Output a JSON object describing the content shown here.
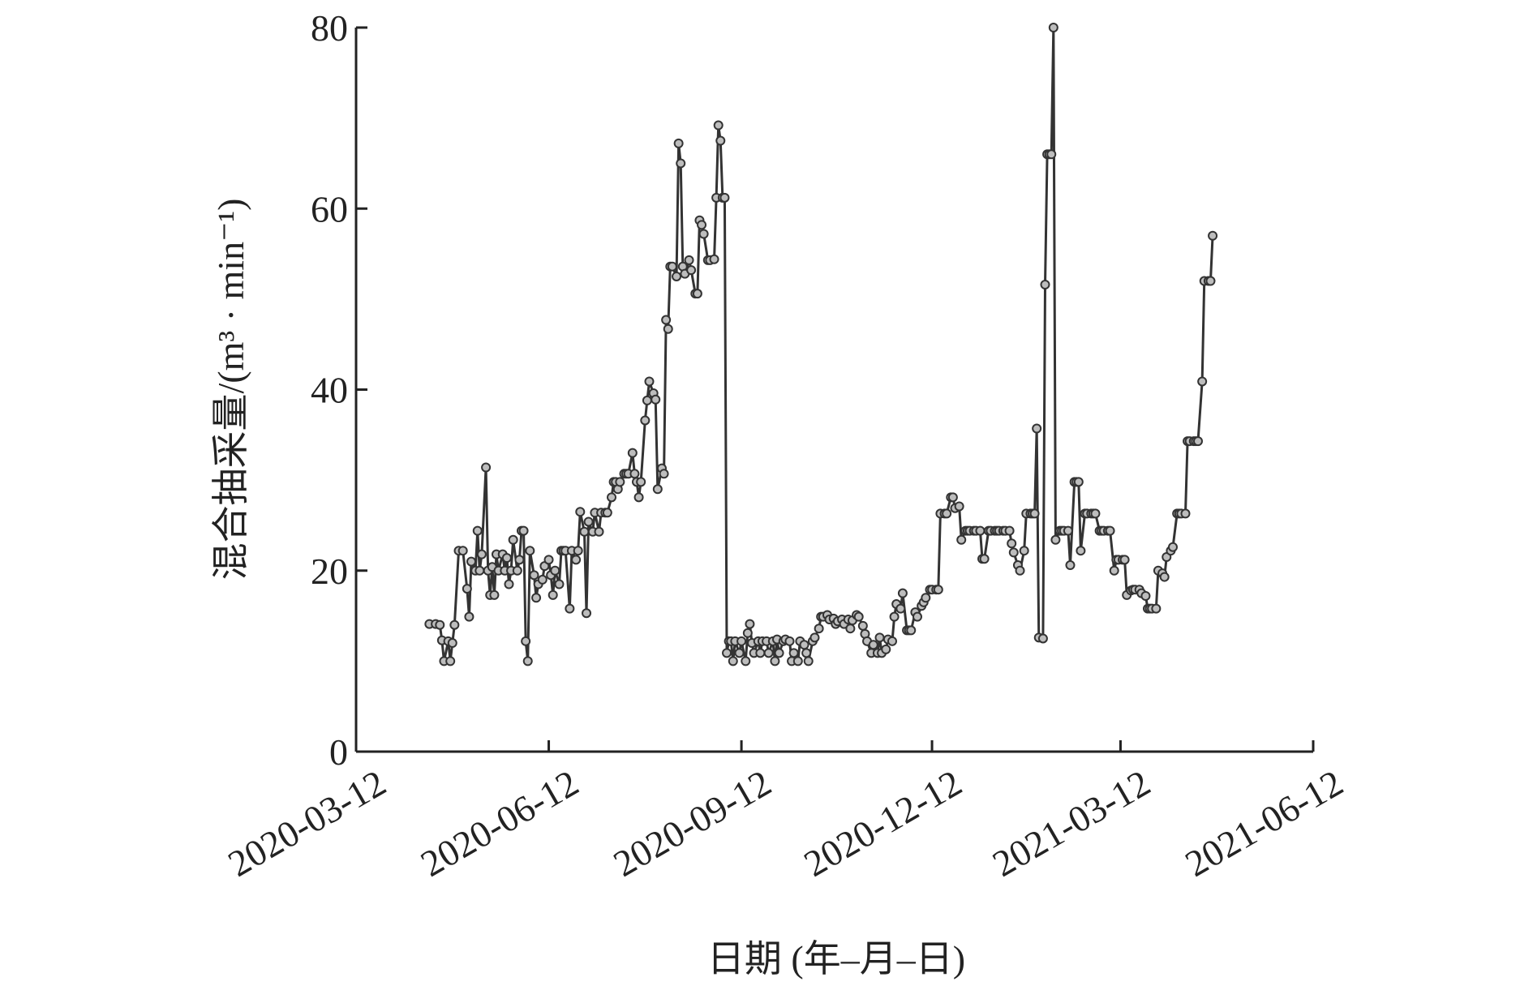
{
  "chart_data": {
    "type": "line",
    "x_label": "日期 (年–月–日)",
    "y_label": "混合抽采量/(m³ · min⁻¹)",
    "x": [
      "2020-04-16",
      "2020-04-19",
      "2020-04-21",
      "2020-04-22",
      "2020-04-23",
      "2020-04-25",
      "2020-04-26",
      "2020-04-27",
      "2020-04-28",
      "2020-04-30",
      "2020-05-02",
      "2020-05-04",
      "2020-05-05",
      "2020-05-06",
      "2020-05-08",
      "2020-05-09",
      "2020-05-10",
      "2020-05-11",
      "2020-05-13",
      "2020-05-14",
      "2020-05-15",
      "2020-05-16",
      "2020-05-17",
      "2020-05-18",
      "2020-05-19",
      "2020-05-21",
      "2020-05-22",
      "2020-05-23",
      "2020-05-24",
      "2020-05-25",
      "2020-05-26",
      "2020-05-28",
      "2020-05-29",
      "2020-05-30",
      "2020-05-31",
      "2020-06-01",
      "2020-06-02",
      "2020-06-03",
      "2020-06-05",
      "2020-06-06",
      "2020-06-07",
      "2020-06-09",
      "2020-06-10",
      "2020-06-12",
      "2020-06-13",
      "2020-06-14",
      "2020-06-15",
      "2020-06-17",
      "2020-06-18",
      "2020-06-19",
      "2020-06-20",
      "2020-06-22",
      "2020-06-23",
      "2020-06-25",
      "2020-06-26",
      "2020-06-27",
      "2020-06-29",
      "2020-06-30",
      "2020-07-01",
      "2020-07-03",
      "2020-07-04",
      "2020-07-06",
      "2020-07-07",
      "2020-07-09",
      "2020-07-10",
      "2020-07-12",
      "2020-07-13",
      "2020-07-14",
      "2020-07-15",
      "2020-07-16",
      "2020-07-18",
      "2020-07-19",
      "2020-07-20",
      "2020-07-22",
      "2020-07-23",
      "2020-07-24",
      "2020-07-25",
      "2020-07-26",
      "2020-07-28",
      "2020-07-29",
      "2020-07-30",
      "2020-08-01",
      "2020-08-02",
      "2020-08-03",
      "2020-08-05",
      "2020-08-06",
      "2020-08-07",
      "2020-08-08",
      "2020-08-09",
      "2020-08-10",
      "2020-08-12",
      "2020-08-13",
      "2020-08-14",
      "2020-08-15",
      "2020-08-16",
      "2020-08-18",
      "2020-08-19",
      "2020-08-21",
      "2020-08-22",
      "2020-08-23",
      "2020-08-24",
      "2020-08-25",
      "2020-08-27",
      "2020-08-28",
      "2020-08-30",
      "2020-08-31",
      "2020-09-01",
      "2020-09-02",
      "2020-09-03",
      "2020-09-04",
      "2020-09-05",
      "2020-09-06",
      "2020-09-07",
      "2020-09-08",
      "2020-09-09",
      "2020-09-11",
      "2020-09-12",
      "2020-09-14",
      "2020-09-15",
      "2020-09-16",
      "2020-09-17",
      "2020-09-18",
      "2020-09-20",
      "2020-09-21",
      "2020-09-22",
      "2020-09-24",
      "2020-09-25",
      "2020-09-27",
      "2020-09-28",
      "2020-09-29",
      "2020-09-30",
      "2020-10-02",
      "2020-10-03",
      "2020-10-05",
      "2020-10-06",
      "2020-10-07",
      "2020-10-09",
      "2020-10-10",
      "2020-10-12",
      "2020-10-13",
      "2020-10-14",
      "2020-10-16",
      "2020-10-17",
      "2020-10-19",
      "2020-10-20",
      "2020-10-21",
      "2020-10-23",
      "2020-10-24",
      "2020-10-26",
      "2020-10-27",
      "2020-10-28",
      "2020-10-30",
      "2020-10-31",
      "2020-11-02",
      "2020-11-03",
      "2020-11-04",
      "2020-11-06",
      "2020-11-07",
      "2020-11-09",
      "2020-11-10",
      "2020-11-11",
      "2020-11-13",
      "2020-11-14",
      "2020-11-16",
      "2020-11-17",
      "2020-11-18",
      "2020-11-20",
      "2020-11-21",
      "2020-11-23",
      "2020-11-24",
      "2020-11-25",
      "2020-11-27",
      "2020-11-28",
      "2020-11-30",
      "2020-12-01",
      "2020-12-02",
      "2020-12-04",
      "2020-12-05",
      "2020-12-07",
      "2020-12-08",
      "2020-12-09",
      "2020-12-11",
      "2020-12-12",
      "2020-12-14",
      "2020-12-15",
      "2020-12-16",
      "2020-12-18",
      "2020-12-19",
      "2020-12-21",
      "2020-12-22",
      "2020-12-23",
      "2020-12-25",
      "2020-12-26",
      "2020-12-28",
      "2020-12-29",
      "2020-12-30",
      "2021-01-01",
      "2021-01-02",
      "2021-01-04",
      "2021-01-05",
      "2021-01-06",
      "2021-01-08",
      "2021-01-09",
      "2021-01-11",
      "2021-01-12",
      "2021-01-13",
      "2021-01-15",
      "2021-01-16",
      "2021-01-18",
      "2021-01-19",
      "2021-01-20",
      "2021-01-22",
      "2021-01-23",
      "2021-01-25",
      "2021-01-26",
      "2021-01-28",
      "2021-01-29",
      "2021-01-30",
      "2021-01-31",
      "2021-02-01",
      "2021-02-03",
      "2021-02-04",
      "2021-02-05",
      "2021-02-06",
      "2021-02-07",
      "2021-02-08",
      "2021-02-09",
      "2021-02-11",
      "2021-02-12",
      "2021-02-13",
      "2021-02-15",
      "2021-02-16",
      "2021-02-18",
      "2021-02-19",
      "2021-02-20",
      "2021-02-21",
      "2021-02-23",
      "2021-02-24",
      "2021-02-26",
      "2021-02-27",
      "2021-02-28",
      "2021-03-02",
      "2021-03-03",
      "2021-03-04",
      "2021-03-06",
      "2021-03-07",
      "2021-03-09",
      "2021-03-10",
      "2021-03-11",
      "2021-03-13",
      "2021-03-14",
      "2021-03-15",
      "2021-03-17",
      "2021-03-18",
      "2021-03-19",
      "2021-03-21",
      "2021-03-22",
      "2021-03-24",
      "2021-03-25",
      "2021-03-26",
      "2021-03-27",
      "2021-03-29",
      "2021-03-30",
      "2021-04-01",
      "2021-04-02",
      "2021-04-03",
      "2021-04-05",
      "2021-04-06",
      "2021-04-08",
      "2021-04-09",
      "2021-04-10",
      "2021-04-12",
      "2021-04-13",
      "2021-04-14",
      "2021-04-16",
      "2021-04-17",
      "2021-04-18",
      "2021-04-20",
      "2021-04-21",
      "2021-04-23",
      "2021-04-24",
      "2021-04-25"
    ],
    "values": [
      14.1,
      14.1,
      14,
      12.3,
      10,
      12.2,
      10,
      12,
      14,
      22.2,
      22.2,
      18,
      14.9,
      21,
      20,
      24.4,
      20,
      21.8,
      31.4,
      20,
      17.3,
      20.4,
      17.3,
      21.8,
      20,
      21.8,
      20,
      21.4,
      18.5,
      20,
      23.4,
      20,
      21.2,
      24.4,
      24.4,
      12.2,
      10,
      22.2,
      19.5,
      17,
      18.5,
      19,
      20.5,
      21.2,
      19.5,
      17.3,
      20,
      18.5,
      22.2,
      22.2,
      22.2,
      15.8,
      22.2,
      21.2,
      22.2,
      26.5,
      24.3,
      15.3,
      25.4,
      24.3,
      26.4,
      24.3,
      26.4,
      26.4,
      26.4,
      28.1,
      29.8,
      29.8,
      29,
      29.8,
      30.7,
      30.7,
      30.7,
      33,
      30.7,
      29.8,
      28.1,
      29.8,
      36.6,
      38.8,
      40.9,
      39.6,
      38.9,
      29,
      31.3,
      30.7,
      47.7,
      46.7,
      53.6,
      53.6,
      52.5,
      67.2,
      65,
      53.6,
      52.8,
      54.3,
      53.2,
      50.6,
      50.6,
      58.7,
      58.2,
      57.2,
      54.3,
      54.3,
      54.4,
      61.2,
      69.2,
      67.5,
      61.2,
      61.2,
      10.9,
      12.2,
      12.2,
      10,
      12.2,
      10.9,
      12.2,
      10,
      13.1,
      14.1,
      12,
      10.9,
      12.2,
      10.9,
      12.2,
      12.2,
      10.9,
      12.2,
      10,
      12.4,
      10.9,
      12.2,
      12.4,
      12.2,
      10,
      10.9,
      10,
      12.2,
      11.8,
      10.9,
      10,
      12.2,
      12.6,
      13.6,
      14.9,
      14.9,
      15.1,
      14.6,
      14.7,
      14.1,
      14.4,
      14.6,
      14.1,
      14.6,
      13.6,
      14.5,
      15.1,
      14.9,
      13.9,
      13,
      12.2,
      10.9,
      11.8,
      10.9,
      12.6,
      10.9,
      11.3,
      12.4,
      12.2,
      14.9,
      16.3,
      15.8,
      17.5,
      13.4,
      13.4,
      13.4,
      15.4,
      14.9,
      16.1,
      16.5,
      17,
      17.9,
      17.9,
      17.9,
      17.9,
      26.3,
      26.3,
      26.3,
      28.1,
      28.1,
      26.9,
      27.1,
      23.4,
      24.4,
      24.4,
      24.4,
      24.4,
      24.4,
      24.4,
      21.3,
      21.3,
      24.4,
      24.4,
      24.4,
      24.4,
      24.4,
      24.4,
      24.4,
      24.4,
      23,
      22,
      20.6,
      20,
      22.2,
      26.3,
      26.3,
      26.3,
      26.3,
      35.7,
      12.6,
      12.5,
      51.6,
      66,
      66,
      66,
      80,
      23.4,
      24.4,
      24.4,
      24.4,
      24.4,
      20.6,
      29.8,
      29.8,
      29.8,
      22.2,
      26.3,
      26.3,
      26.3,
      26.3,
      26.3,
      24.4,
      24.4,
      24.4,
      24.4,
      24.4,
      20,
      21.2,
      21.2,
      21.2,
      21.2,
      17.3,
      17.8,
      17.9,
      17.9,
      17.9,
      17.5,
      17.2,
      15.8,
      15.8,
      15.8,
      15.8,
      20,
      19.7,
      19.3,
      21.5,
      22.2,
      22.6,
      26.3,
      26.3,
      26.3,
      26.3,
      34.3,
      34.3,
      34.3,
      34.3,
      34.3,
      40.9,
      52,
      52,
      52,
      57
    ],
    "color": "#333333",
    "marker_color": "#bdbdbd",
    "xlim": [
      "2020-03-12",
      "2021-06-12"
    ],
    "xticks": [
      "2020-03-12",
      "2020-06-12",
      "2020-09-12",
      "2020-12-12",
      "2021-03-12",
      "2021-06-12"
    ],
    "ylim": [
      0,
      80
    ],
    "yticks": [
      0,
      20,
      40,
      60,
      80
    ]
  }
}
